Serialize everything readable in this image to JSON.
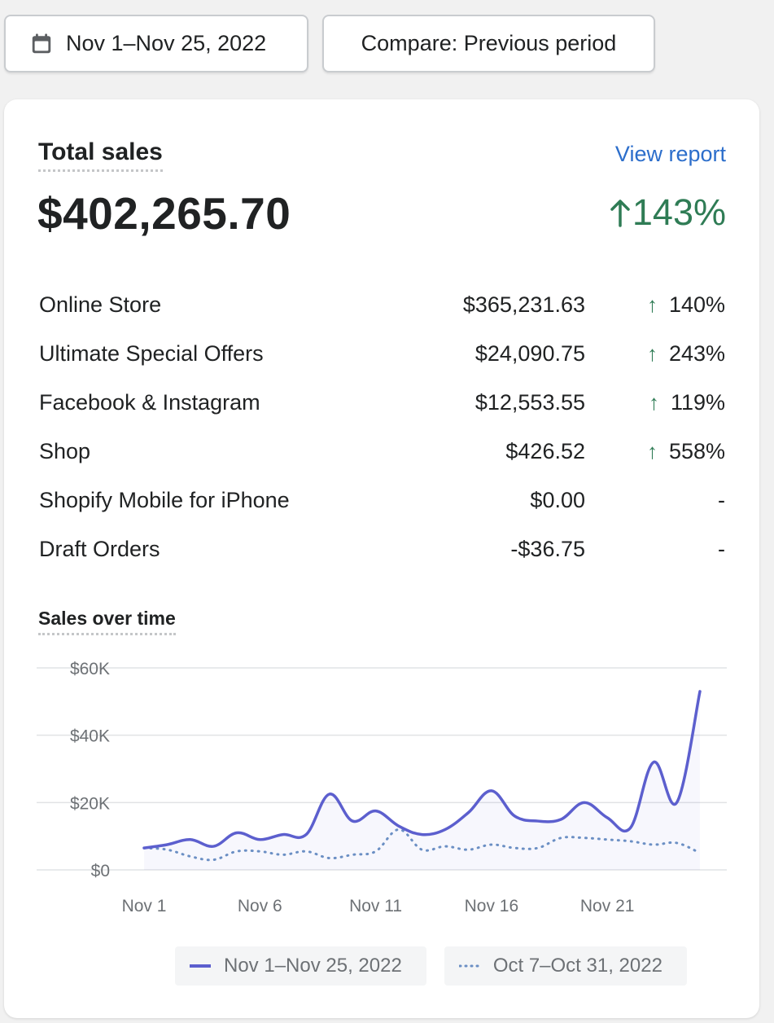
{
  "toolbar": {
    "date_label": "Nov 1–Nov 25, 2022",
    "compare_label": "Compare: Previous period",
    "calendar_icon": "calendar-icon"
  },
  "card": {
    "title": "Total sales",
    "view_report": "View report",
    "total": "$402,265.70",
    "total_change": "143%",
    "rows": [
      {
        "label": "Online Store",
        "amount": "$365,231.63",
        "change": "140%",
        "direction": "up"
      },
      {
        "label": "Ultimate Special Offers",
        "amount": "$24,090.75",
        "change": "243%",
        "direction": "up"
      },
      {
        "label": "Facebook & Instagram",
        "amount": "$12,553.55",
        "change": "119%",
        "direction": "up"
      },
      {
        "label": "Shop",
        "amount": "$426.52",
        "change": "558%",
        "direction": "up"
      },
      {
        "label": "Shopify Mobile for iPhone",
        "amount": "$0.00",
        "change": "-",
        "direction": "none"
      },
      {
        "label": "Draft Orders",
        "amount": "-$36.75",
        "change": "-",
        "direction": "none"
      }
    ],
    "sales_over_time_title": "Sales over time"
  },
  "colors": {
    "positive": "#2f7c55",
    "link": "#2c6ecb",
    "current_series": "#5c5fce",
    "previous_series": "#6b8fc4"
  },
  "chart_data": {
    "type": "line",
    "y_ticks": [
      "$0",
      "$20K",
      "$40K",
      "$60K"
    ],
    "ylim": [
      0,
      60000
    ],
    "x_tick_labels": [
      "Nov 1",
      "Nov 6",
      "Nov 11",
      "Nov 16",
      "Nov 21"
    ],
    "x": [
      1,
      2,
      3,
      4,
      5,
      6,
      7,
      8,
      9,
      10,
      11,
      12,
      13,
      14,
      15,
      16,
      17,
      18,
      19,
      20,
      21,
      22,
      23,
      24,
      25
    ],
    "series": [
      {
        "name": "Nov 1–Nov 25, 2022",
        "style": "solid",
        "values": [
          6500,
          7500,
          9000,
          7000,
          11000,
          9000,
          10500,
          10500,
          22500,
          14500,
          17500,
          13000,
          10500,
          12000,
          17000,
          23500,
          16000,
          14500,
          15000,
          20000,
          15500,
          12500,
          32000,
          20000,
          53000
        ]
      },
      {
        "name": "Oct 7–Oct 31, 2022",
        "style": "dotted",
        "values": [
          6500,
          6000,
          4000,
          3000,
          5500,
          5500,
          4500,
          5500,
          3500,
          4500,
          5500,
          12000,
          6000,
          7000,
          6000,
          7500,
          6500,
          6500,
          9500,
          9500,
          9000,
          8500,
          7500,
          8000,
          5000
        ]
      }
    ]
  }
}
